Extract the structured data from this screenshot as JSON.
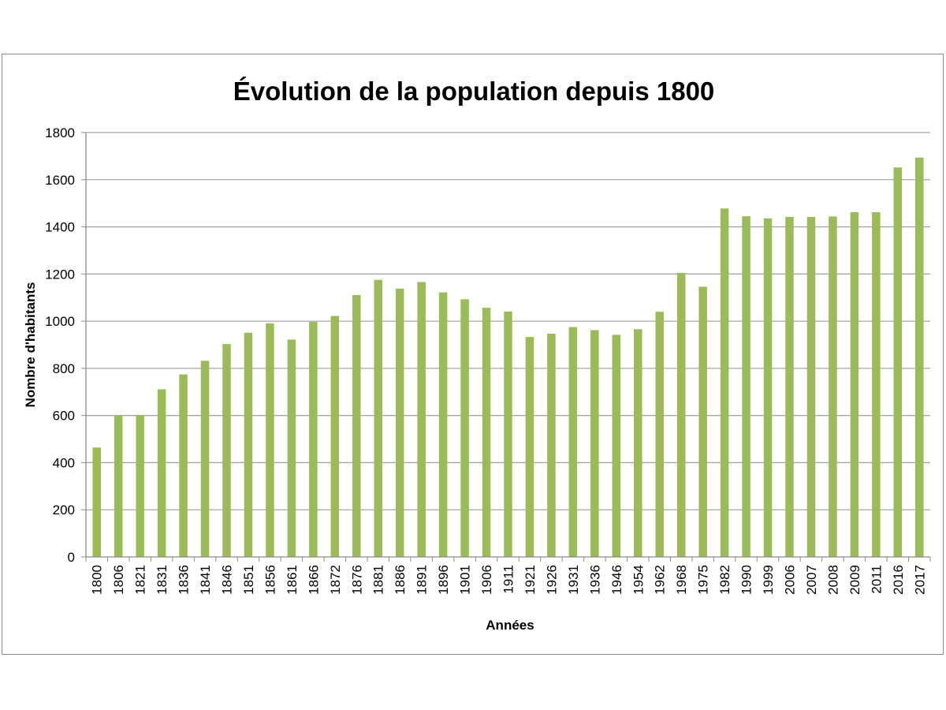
{
  "chart_data": {
    "type": "bar",
    "title": "Évolution de la population depuis 1800",
    "xlabel": "Années",
    "ylabel": "Nombre d'habitants",
    "ylim": [
      0,
      1800
    ],
    "yticks": [
      0,
      200,
      400,
      600,
      800,
      1000,
      1200,
      1400,
      1600,
      1800
    ],
    "grid": true,
    "legend": "none",
    "bar_color": "#9bbb59",
    "grid_color": "#a6a6a6",
    "categories": [
      "1800",
      "1806",
      "1821",
      "1831",
      "1836",
      "1841",
      "1846",
      "1851",
      "1856",
      "1861",
      "1866",
      "1872",
      "1876",
      "1881",
      "1886",
      "1891",
      "1896",
      "1901",
      "1906",
      "1911",
      "1921",
      "1926",
      "1931",
      "1936",
      "1946",
      "1954",
      "1962",
      "1968",
      "1975",
      "1982",
      "1990",
      "1999",
      "2006",
      "2007",
      "2008",
      "2009",
      "2011",
      "2016",
      "2017"
    ],
    "values": [
      464,
      600,
      601,
      711,
      774,
      832,
      903,
      951,
      991,
      922,
      997,
      1022,
      1111,
      1175,
      1138,
      1166,
      1122,
      1093,
      1057,
      1041,
      933,
      947,
      975,
      962,
      942,
      966,
      1040,
      1205,
      1146,
      1478,
      1445,
      1436,
      1442,
      1442,
      1444,
      1462,
      1462,
      1652,
      1694
    ]
  }
}
